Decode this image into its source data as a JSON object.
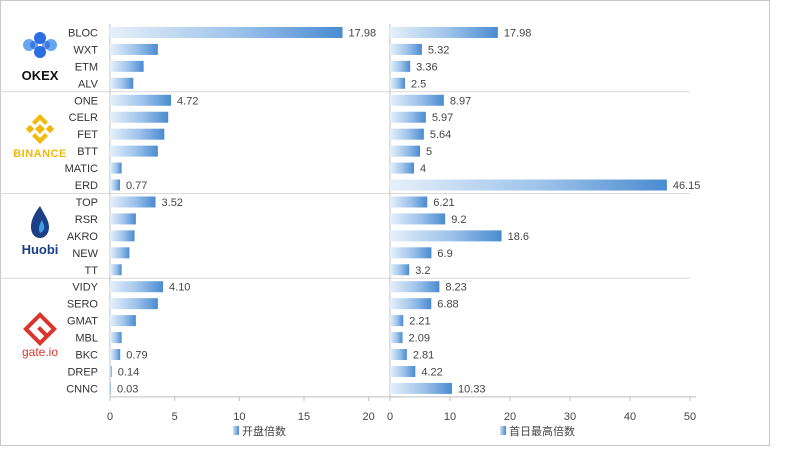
{
  "chart_data": {
    "type": "bar",
    "orientation": "horizontal",
    "categories": [
      "BLOC",
      "WXT",
      "ETM",
      "ALV",
      "ONE",
      "CELR",
      "FET",
      "BTT",
      "MATIC",
      "ERD",
      "TOP",
      "RSR",
      "AKRO",
      "NEW",
      "TT",
      "VIDY",
      "SERO",
      "GMAT",
      "MBL",
      "BKC",
      "DREP",
      "CNNC"
    ],
    "series": [
      {
        "name": "开盘倍数",
        "values": [
          17.98,
          3.7,
          2.6,
          1.8,
          4.72,
          4.5,
          4.2,
          3.7,
          0.9,
          0.77,
          3.52,
          2.0,
          1.9,
          1.5,
          0.9,
          4.1,
          3.7,
          2.0,
          0.9,
          0.79,
          0.14,
          0.03
        ],
        "labels": [
          "17.98",
          "",
          "",
          "",
          "4.72",
          "",
          "",
          "",
          "",
          "0.77",
          "3.52",
          "",
          "",
          "",
          "",
          "4.10",
          "",
          "",
          "",
          "0.79",
          "0.14",
          "0.03"
        ],
        "xlim": [
          0,
          22.5
        ],
        "ticks": [
          "0",
          "5",
          "10",
          "15",
          "20"
        ]
      },
      {
        "name": "首日最高倍数",
        "values": [
          17.98,
          5.32,
          3.36,
          2.5,
          8.97,
          5.97,
          5.64,
          5,
          4,
          46.15,
          6.21,
          9.2,
          18.6,
          6.9,
          3.2,
          8.23,
          6.88,
          2.21,
          2.09,
          2.81,
          4.22,
          10.33
        ],
        "labels": [
          "17.98",
          "5.32",
          "3.36",
          "2.5",
          "8.97",
          "5.97",
          "5.64",
          "5",
          "4",
          "46.15",
          "6.21",
          "9.2",
          "18.6",
          "6.9",
          "3.2",
          "8.23",
          "6.88",
          "2.21",
          "2.09",
          "2.81",
          "4.22",
          "10.33"
        ],
        "xlim": [
          0,
          51
        ],
        "ticks": [
          "0",
          "10",
          "20",
          "30",
          "40",
          "50"
        ]
      }
    ],
    "groups": [
      {
        "name": "OKEX",
        "count": 4
      },
      {
        "name": "BINANCE",
        "count": 6
      },
      {
        "name": "Huobi",
        "count": 5
      },
      {
        "name": "gate.io",
        "count": 7
      }
    ],
    "colors": {
      "bar_dark": "#4a8bd0",
      "bar_light": "#e6f0fa",
      "grid": "#d9d9d9",
      "axis": "#bfbfbf",
      "okex": "#1a5bd6",
      "binance": "#f0b90b",
      "huobi": "#1c3f86",
      "gate": "#d9352c"
    }
  }
}
